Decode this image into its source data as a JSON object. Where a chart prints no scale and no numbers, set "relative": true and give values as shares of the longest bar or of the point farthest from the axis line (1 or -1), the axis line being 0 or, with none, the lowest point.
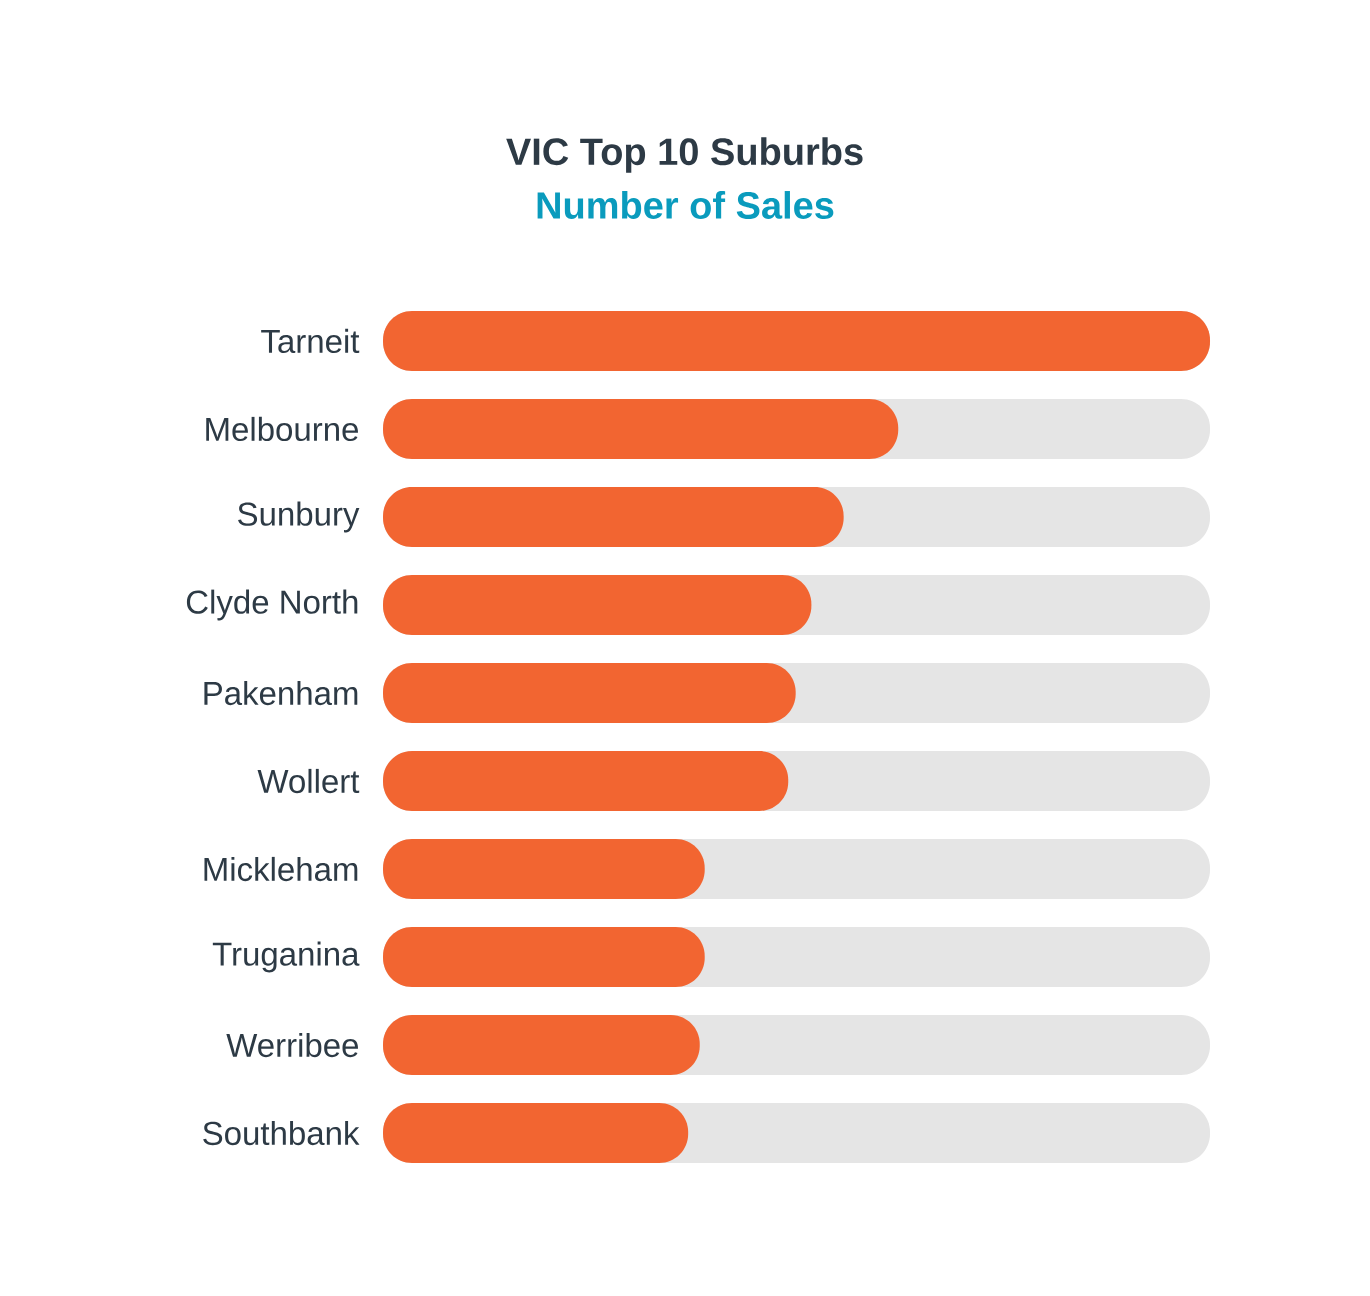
{
  "chart_data": {
    "type": "bar",
    "orientation": "horizontal",
    "relative": true,
    "title": "VIC Top 10 Suburbs",
    "subtitle": "Number of Sales",
    "categories": [
      "Tarneit",
      "Melbourne",
      "Sunbury",
      "Clyde North",
      "Pakenham",
      "Wollert",
      "Mickleham",
      "Truganina",
      "Werribee",
      "Southbank"
    ],
    "values": [
      1,
      0.623,
      0.557,
      0.518,
      0.499,
      0.49,
      0.389,
      0.389,
      0.383,
      0.369
    ],
    "color": "#f26531"
  }
}
